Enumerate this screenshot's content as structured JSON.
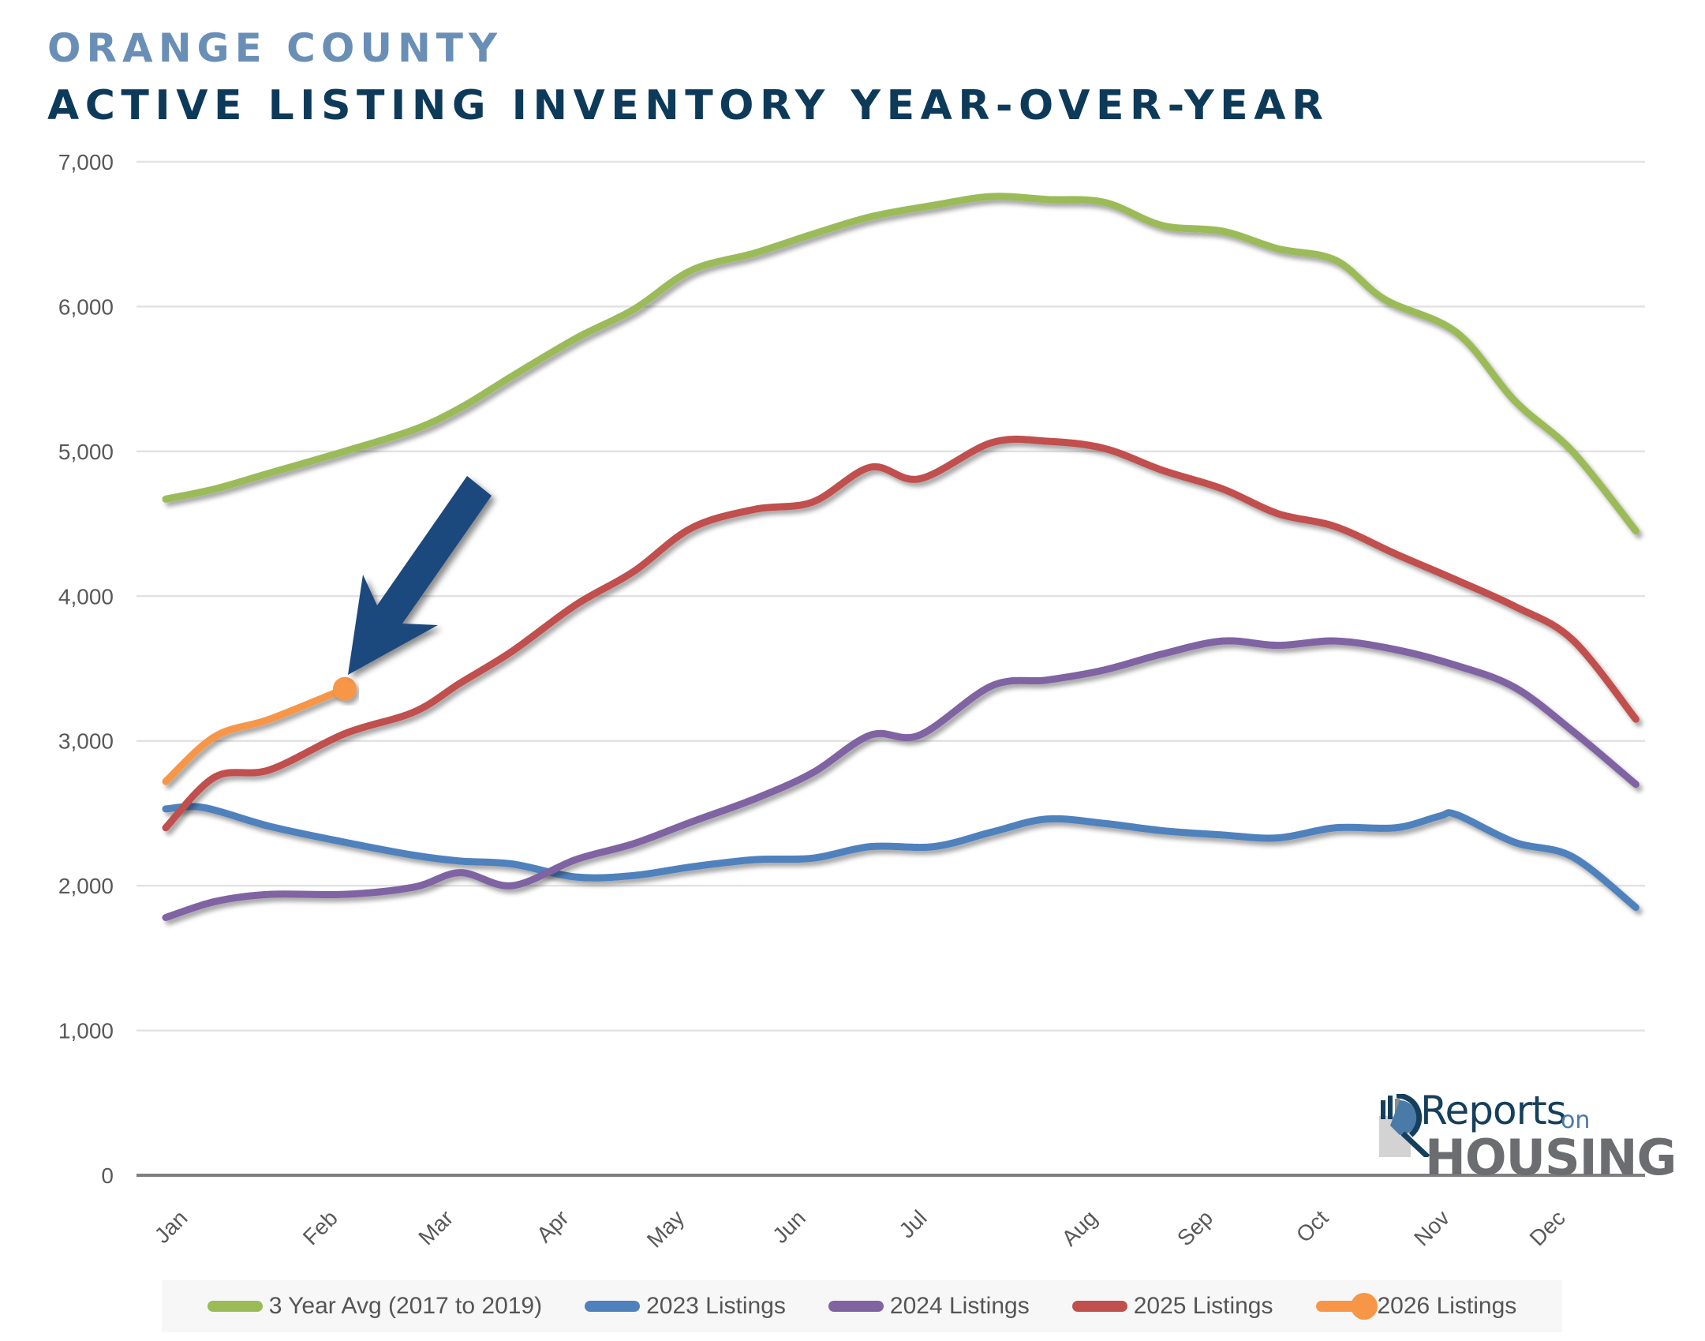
{
  "header": {
    "region": "ORANGE COUNTY",
    "title": "ACTIVE LISTING INVENTORY YEAR-OVER-YEAR"
  },
  "logo": {
    "text_top": "Reports",
    "text_on": "on",
    "text_bottom": "HOUSING"
  },
  "colors": {
    "title_light": "#6a8fb6",
    "title_dark": "#0e3a5a",
    "arrow": "#1f497d",
    "grid": "#e3e3e3",
    "axis": "#7f7f7f"
  },
  "chart_data": {
    "type": "line",
    "title": "ACTIVE LISTING INVENTORY YEAR-OVER-YEAR",
    "subtitle": "ORANGE COUNTY",
    "xlabel": "",
    "ylabel": "",
    "ylim": [
      0,
      7000
    ],
    "yticks": [
      0,
      1000,
      2000,
      3000,
      4000,
      5000,
      6000,
      7000
    ],
    "ytick_labels": [
      "0",
      "1,000",
      "2,000",
      "3,000",
      "4,000",
      "5,000",
      "6,000",
      "7,000"
    ],
    "x_unit": "week of year",
    "xlim": [
      1,
      52
    ],
    "month_ticks": [
      {
        "label": "Jan",
        "week": 1.8
      },
      {
        "label": "Feb",
        "week": 7.0
      },
      {
        "label": "Mar",
        "week": 11.0
      },
      {
        "label": "Apr",
        "week": 15.0
      },
      {
        "label": "May",
        "week": 19.0
      },
      {
        "label": "Jun",
        "week": 23.2
      },
      {
        "label": "Jul",
        "week": 27.4
      },
      {
        "label": "Aug",
        "week": 33.3
      },
      {
        "label": "Sep",
        "week": 37.3
      },
      {
        "label": "Oct",
        "week": 41.3
      },
      {
        "label": "Nov",
        "week": 45.5
      },
      {
        "label": "Dec",
        "week": 49.5
      }
    ],
    "grid": true,
    "legend_position": "bottom",
    "annotation": {
      "type": "arrow",
      "points_to": "2026 Listings latest value"
    },
    "series": [
      {
        "name": "3 Year Avg (2017 to 2019)",
        "color": "#9bbb59",
        "marker_last": false,
        "points": [
          [
            1,
            4670
          ],
          [
            2.7,
            4740
          ],
          [
            4.6,
            4850
          ],
          [
            7.2,
            5000
          ],
          [
            9.6,
            5150
          ],
          [
            11.2,
            5300
          ],
          [
            13.0,
            5520
          ],
          [
            15.2,
            5780
          ],
          [
            17.2,
            5980
          ],
          [
            19.2,
            6250
          ],
          [
            21.4,
            6370
          ],
          [
            23.4,
            6500
          ],
          [
            25.4,
            6620
          ],
          [
            27.6,
            6700
          ],
          [
            29.6,
            6760
          ],
          [
            31.5,
            6740
          ],
          [
            33.5,
            6720
          ],
          [
            35.5,
            6560
          ],
          [
            37.6,
            6520
          ],
          [
            39.5,
            6400
          ],
          [
            41.5,
            6320
          ],
          [
            43.2,
            6050
          ],
          [
            45.7,
            5820
          ],
          [
            47.7,
            5350
          ],
          [
            49.7,
            5000
          ],
          [
            51.9,
            4450
          ]
        ]
      },
      {
        "name": "2023 Listings",
        "color": "#4f81bd",
        "marker_last": false,
        "points": [
          [
            1,
            2530
          ],
          [
            2.3,
            2540
          ],
          [
            4.6,
            2410
          ],
          [
            7.2,
            2300
          ],
          [
            9.6,
            2210
          ],
          [
            11.2,
            2170
          ],
          [
            13.0,
            2150
          ],
          [
            15.2,
            2060
          ],
          [
            17.2,
            2070
          ],
          [
            19.2,
            2130
          ],
          [
            21.4,
            2180
          ],
          [
            23.4,
            2190
          ],
          [
            25.4,
            2270
          ],
          [
            27.6,
            2270
          ],
          [
            29.6,
            2370
          ],
          [
            31.5,
            2460
          ],
          [
            33.5,
            2430
          ],
          [
            35.5,
            2380
          ],
          [
            37.6,
            2350
          ],
          [
            39.5,
            2330
          ],
          [
            41.5,
            2400
          ],
          [
            43.6,
            2400
          ],
          [
            45.1,
            2480
          ],
          [
            45.7,
            2490
          ],
          [
            47.7,
            2300
          ],
          [
            49.7,
            2200
          ],
          [
            51.9,
            1850
          ]
        ]
      },
      {
        "name": "2024 Listings",
        "color": "#8064a2",
        "marker_last": false,
        "points": [
          [
            1,
            1780
          ],
          [
            2.7,
            1890
          ],
          [
            4.6,
            1940
          ],
          [
            7.2,
            1940
          ],
          [
            9.6,
            1990
          ],
          [
            11.2,
            2090
          ],
          [
            13.0,
            2000
          ],
          [
            15.2,
            2180
          ],
          [
            17.2,
            2290
          ],
          [
            19.2,
            2440
          ],
          [
            21.4,
            2600
          ],
          [
            23.4,
            2780
          ],
          [
            25.4,
            3040
          ],
          [
            27.1,
            3040
          ],
          [
            29.6,
            3380
          ],
          [
            31.5,
            3420
          ],
          [
            33.5,
            3490
          ],
          [
            35.5,
            3600
          ],
          [
            37.6,
            3690
          ],
          [
            39.5,
            3660
          ],
          [
            41.5,
            3690
          ],
          [
            43.6,
            3630
          ],
          [
            45.7,
            3520
          ],
          [
            47.7,
            3370
          ],
          [
            49.7,
            3070
          ],
          [
            51.9,
            2700
          ]
        ]
      },
      {
        "name": "2025 Listings",
        "color": "#c0504d",
        "marker_last": false,
        "points": [
          [
            1,
            2400
          ],
          [
            2.7,
            2750
          ],
          [
            4.6,
            2800
          ],
          [
            7.2,
            3050
          ],
          [
            9.6,
            3200
          ],
          [
            11.2,
            3400
          ],
          [
            13.0,
            3620
          ],
          [
            15.2,
            3940
          ],
          [
            17.2,
            4170
          ],
          [
            19.2,
            4470
          ],
          [
            21.4,
            4600
          ],
          [
            23.4,
            4650
          ],
          [
            25.4,
            4890
          ],
          [
            27.1,
            4810
          ],
          [
            29.6,
            5060
          ],
          [
            31.5,
            5070
          ],
          [
            33.5,
            5020
          ],
          [
            35.5,
            4870
          ],
          [
            37.6,
            4740
          ],
          [
            39.5,
            4570
          ],
          [
            41.5,
            4480
          ],
          [
            43.6,
            4290
          ],
          [
            45.7,
            4110
          ],
          [
            47.7,
            3930
          ],
          [
            49.7,
            3700
          ],
          [
            51.9,
            3150
          ]
        ]
      },
      {
        "name": "2026 Listings",
        "color": "#f79646",
        "marker_last": true,
        "points": [
          [
            1,
            2720
          ],
          [
            2.7,
            3030
          ],
          [
            4.6,
            3150
          ],
          [
            7.2,
            3360
          ]
        ]
      }
    ]
  }
}
